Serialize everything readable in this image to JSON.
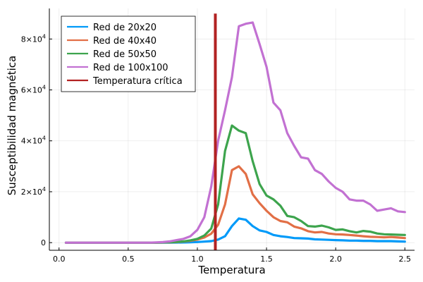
{
  "chart_data": {
    "type": "line",
    "title": "",
    "xlabel": "Temperatura",
    "ylabel": "Susceptibilidad magnética",
    "xlim": [
      0.0,
      2.5
    ],
    "ylim": [
      0,
      90000
    ],
    "grid": true,
    "legend_position": "top-left",
    "x_ticks": [
      0.0,
      0.5,
      1.0,
      1.5,
      2.0,
      2.5
    ],
    "x_tick_labels": [
      "0.0",
      "0.5",
      "1.0",
      "1.5",
      "2.0",
      "2.5"
    ],
    "y_ticks": [
      0,
      20000,
      40000,
      60000,
      80000
    ],
    "y_tick_labels": [
      {
        "base": "0",
        "exp": ""
      },
      {
        "base": "2×10",
        "exp": "4"
      },
      {
        "base": "4×10",
        "exp": "4"
      },
      {
        "base": "6×10",
        "exp": "4"
      },
      {
        "base": "8×10",
        "exp": "4"
      }
    ],
    "x": [
      0.05,
      0.1,
      0.15,
      0.2,
      0.25,
      0.3,
      0.35,
      0.4,
      0.45,
      0.5,
      0.55,
      0.6,
      0.65,
      0.7,
      0.75,
      0.8,
      0.85,
      0.9,
      0.95,
      1.0,
      1.05,
      1.1,
      1.15,
      1.2,
      1.25,
      1.3,
      1.35,
      1.4,
      1.45,
      1.5,
      1.55,
      1.6,
      1.65,
      1.7,
      1.75,
      1.8,
      1.85,
      1.9,
      1.95,
      2.0,
      2.05,
      2.1,
      2.15,
      2.2,
      2.25,
      2.3,
      2.35,
      2.4,
      2.45,
      2.5
    ],
    "series": [
      {
        "name": "Red de 20x20",
        "color": "#009af9",
        "values": [
          0,
          0,
          0,
          0,
          0,
          0,
          0,
          0,
          0,
          0,
          0,
          0,
          0,
          0,
          0,
          20,
          40,
          80,
          150,
          250,
          400,
          600,
          1200,
          2500,
          6500,
          9500,
          9000,
          6500,
          4800,
          4200,
          3000,
          2500,
          2200,
          1800,
          1700,
          1600,
          1300,
          1200,
          1100,
          1000,
          900,
          800,
          800,
          700,
          700,
          600,
          600,
          600,
          500,
          400
        ]
      },
      {
        "name": "Red de 40x40",
        "color": "#e26f46",
        "values": [
          0,
          0,
          0,
          0,
          0,
          0,
          0,
          0,
          0,
          0,
          0,
          0,
          0,
          0,
          50,
          100,
          200,
          400,
          700,
          1200,
          2000,
          3500,
          7000,
          15000,
          28500,
          30000,
          27000,
          19000,
          15500,
          12500,
          10000,
          8500,
          8000,
          6300,
          5600,
          4500,
          4000,
          4200,
          3600,
          3300,
          3200,
          3000,
          2800,
          2500,
          2300,
          2200,
          2100,
          2200,
          2000,
          1800
        ]
      },
      {
        "name": "Red de 50x50",
        "color": "#3da44d",
        "values": [
          0,
          0,
          0,
          0,
          0,
          0,
          0,
          0,
          0,
          0,
          0,
          0,
          0,
          0,
          80,
          150,
          300,
          500,
          900,
          1500,
          2800,
          5500,
          15000,
          36000,
          46000,
          44000,
          43000,
          32000,
          23000,
          18500,
          17000,
          14500,
          10500,
          10000,
          8500,
          6500,
          6300,
          6700,
          6000,
          5000,
          5200,
          4500,
          4000,
          4600,
          4300,
          3600,
          3300,
          3200,
          3100,
          3000
        ]
      },
      {
        "name": "Red de 100x100",
        "color": "#c271d2",
        "values": [
          0,
          0,
          0,
          0,
          0,
          0,
          0,
          0,
          0,
          0,
          0,
          0,
          0,
          100,
          200,
          500,
          1000,
          1500,
          2500,
          5000,
          10000,
          22000,
          40000,
          52000,
          65000,
          85000,
          86000,
          86500,
          78000,
          69000,
          55000,
          52000,
          43000,
          38000,
          33500,
          33000,
          28500,
          27000,
          24000,
          21500,
          20000,
          17000,
          16500,
          16500,
          15000,
          12500,
          13000,
          13500,
          12300,
          12000
        ]
      }
    ],
    "vertical_line": {
      "name": "Temperatura crítica",
      "color": "#b22222",
      "x": 1.13
    }
  }
}
